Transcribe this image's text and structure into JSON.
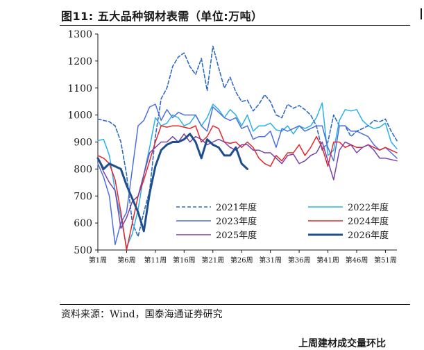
{
  "header": {
    "title": "图11:  五大品种钢材表需（单位:万吨）"
  },
  "footer": {
    "source": "资料来源：Wind，国泰海通证券研究",
    "cut_text": "上周建材成交量环比"
  },
  "chart_data": {
    "type": "line",
    "title": "图11:  五大品种钢材表需（单位:万吨）",
    "ylim": [
      500,
      1300
    ],
    "yticks": [
      500,
      600,
      700,
      800,
      900,
      1000,
      1100,
      1200,
      1300
    ],
    "xlim": [
      1,
      53
    ],
    "xtick_values": [
      1,
      6,
      11,
      16,
      21,
      26,
      31,
      36,
      41,
      46,
      51
    ],
    "xtick_labels": [
      "第1周",
      "第6周",
      "第11周",
      "第16周",
      "第21周",
      "第26周",
      "第31周",
      "第36周",
      "第41周",
      "第46周",
      "第51周"
    ],
    "legend_position": "lower-right inside plot",
    "grid": false,
    "series": [
      {
        "name": "2021年度",
        "color": "#2e69c4",
        "style": "dashed",
        "width": 1.6,
        "x": [
          1,
          2,
          3,
          4,
          5,
          6,
          7,
          8,
          9,
          10,
          11,
          12,
          13,
          14,
          15,
          16,
          17,
          18,
          19,
          20,
          21,
          22,
          23,
          24,
          25,
          26,
          27,
          28,
          29,
          30,
          31,
          32,
          33,
          34,
          35,
          36,
          37,
          38,
          39,
          40,
          41,
          42,
          43,
          44,
          45,
          46,
          47,
          48,
          49,
          50,
          51,
          52,
          53
        ],
        "values": [
          985,
          980,
          975,
          960,
          900,
          780,
          600,
          550,
          640,
          720,
          920,
          1060,
          1100,
          1180,
          1215,
          1230,
          1180,
          1150,
          1210,
          1090,
          1255,
          1175,
          1100,
          1140,
          1085,
          1050,
          1055,
          1015,
          1040,
          1075,
          1050,
          1000,
          990,
          1040,
          1025,
          1035,
          1020,
          1000,
          960,
          870,
          900,
          1000,
          960,
          960,
          920,
          940,
          950,
          960,
          980,
          975,
          985,
          940,
          905
        ]
      },
      {
        "name": "2022年度",
        "color": "#29b2e6",
        "style": "solid",
        "width": 1.5,
        "x": [
          1,
          2,
          3,
          4,
          5,
          6,
          7,
          8,
          9,
          10,
          11,
          12,
          13,
          14,
          15,
          16,
          17,
          18,
          19,
          20,
          21,
          22,
          23,
          24,
          25,
          26,
          27,
          28,
          29,
          30,
          31,
          32,
          33,
          34,
          35,
          36,
          37,
          38,
          39,
          40,
          41,
          42,
          43,
          44,
          45,
          46,
          47,
          48,
          49,
          50,
          51,
          52,
          53
        ],
        "values": [
          905,
          910,
          850,
          720,
          620,
          510,
          560,
          650,
          780,
          880,
          990,
          960,
          970,
          1000,
          990,
          960,
          970,
          1000,
          960,
          990,
          1040,
          1020,
          990,
          1020,
          1000,
          960,
          1000,
          940,
          960,
          960,
          970,
          945,
          940,
          960,
          930,
          960,
          950,
          960,
          990,
          1045,
          850,
          870,
          980,
          1020,
          1015,
          1020,
          980,
          960,
          950,
          955,
          970,
          900,
          875
        ]
      },
      {
        "name": "2023年度",
        "color": "#4a6fe0",
        "style": "solid",
        "width": 1.5,
        "x": [
          1,
          2,
          3,
          4,
          5,
          6,
          7,
          8,
          9,
          10,
          11,
          12,
          13,
          14,
          15,
          16,
          17,
          18,
          19,
          20,
          21,
          22,
          23,
          24,
          25,
          26,
          27,
          28,
          29,
          30,
          31,
          32,
          33,
          34,
          35,
          36,
          37,
          38,
          39,
          40,
          41,
          42,
          43,
          44,
          45,
          46,
          47,
          48,
          49,
          50,
          51,
          52,
          53
        ],
        "values": [
          820,
          770,
          700,
          520,
          600,
          640,
          800,
          960,
          980,
          1030,
          1040,
          980,
          1020,
          990,
          1010,
          1000,
          1000,
          1000,
          960,
          940,
          1030,
          1010,
          990,
          980,
          990,
          950,
          960,
          910,
          920,
          920,
          940,
          880,
          950,
          940,
          950,
          960,
          940,
          950,
          960,
          960,
          880,
          830,
          960,
          960,
          940,
          940,
          930,
          920,
          890,
          870,
          880,
          860,
          840
        ]
      },
      {
        "name": "2024年度",
        "color": "#e6252a",
        "style": "solid",
        "width": 1.5,
        "x": [
          1,
          2,
          3,
          4,
          5,
          6,
          7,
          8,
          9,
          10,
          11,
          12,
          13,
          14,
          15,
          16,
          17,
          18,
          19,
          20,
          21,
          22,
          23,
          24,
          25,
          26,
          27,
          28,
          29,
          30,
          31,
          32,
          33,
          34,
          35,
          36,
          37,
          38,
          39,
          40,
          41,
          42,
          43,
          44,
          45,
          46,
          47,
          48,
          49,
          50,
          51,
          52,
          53
        ],
        "values": [
          850,
          840,
          820,
          760,
          640,
          500,
          600,
          700,
          760,
          830,
          900,
          960,
          955,
          960,
          960,
          955,
          950,
          960,
          900,
          920,
          960,
          950,
          900,
          895,
          900,
          880,
          900,
          880,
          840,
          820,
          810,
          850,
          830,
          860,
          860,
          890,
          850,
          880,
          920,
          880,
          810,
          900,
          900,
          880,
          890,
          880,
          880,
          890,
          880,
          870,
          880,
          870,
          860
        ]
      },
      {
        "name": "2025年度",
        "color": "#7b3fa8",
        "style": "solid",
        "width": 1.5,
        "x": [
          1,
          2,
          3,
          4,
          5,
          6,
          7,
          8,
          9,
          10,
          11,
          12,
          13,
          14,
          15,
          16,
          17,
          18,
          19,
          20,
          21,
          22,
          23,
          24,
          25,
          26,
          27,
          28,
          29,
          30,
          31,
          32,
          33,
          34,
          35,
          36,
          37,
          38,
          39,
          40,
          41,
          42,
          43,
          44,
          45,
          46,
          47,
          48,
          49,
          50,
          51,
          52,
          53
        ],
        "values": [
          840,
          790,
          750,
          720,
          580,
          620,
          680,
          700,
          780,
          860,
          880,
          900,
          900,
          920,
          900,
          930,
          900,
          920,
          910,
          890,
          900,
          910,
          900,
          880,
          870,
          890,
          890,
          870,
          870,
          860,
          860,
          840,
          820,
          850,
          855,
          820,
          830,
          850,
          860,
          900,
          830,
          760,
          870,
          900,
          890,
          860,
          880,
          890,
          870,
          840,
          840,
          835,
          830
        ]
      },
      {
        "name": "2026年度",
        "color": "#1f4e8c",
        "style": "solid",
        "width": 3,
        "x": [
          1,
          2,
          3,
          4,
          5,
          6,
          7,
          8,
          9,
          10,
          11,
          12,
          13,
          14,
          15,
          16,
          17,
          18,
          19,
          20,
          21,
          22,
          23,
          24,
          25,
          26,
          27
        ],
        "values": [
          840,
          800,
          820,
          810,
          800,
          740,
          690,
          640,
          570,
          710,
          810,
          870,
          890,
          900,
          900,
          910,
          930,
          900,
          840,
          910,
          890,
          880,
          850,
          850,
          880,
          820,
          800
        ]
      }
    ]
  }
}
